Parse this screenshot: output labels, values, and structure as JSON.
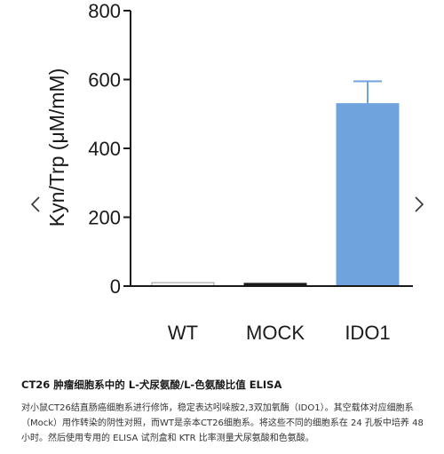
{
  "navigation": {
    "prev_icon": "chevron-left-icon",
    "next_icon": "chevron-right-icon"
  },
  "chart_data": {
    "type": "bar",
    "ylabel": "Kyn/Trp (μM/mM)",
    "categories": [
      "WT",
      "MOCK",
      "IDO1"
    ],
    "values": [
      10,
      8,
      530
    ],
    "error_plus": [
      2,
      2,
      65
    ],
    "bar_fills": [
      "#ffffff",
      "#1a1a1a",
      "#6fa3dd"
    ],
    "ylim": [
      0,
      800
    ],
    "yticks": [
      0,
      200,
      400,
      600,
      800
    ],
    "grid": false,
    "legend": "none"
  },
  "caption": {
    "title": "CT26 肿瘤细胞系中的 L-犬尿氨酸/L-色氨酸比值 ELISA",
    "body": "对小鼠CT26结直肠癌细胞系进行修饰，稳定表达吲哚胺2,3双加氧酶（IDO1）。其空载体对应细胞系（Mock）用作转染的阴性对照，而WT是亲本CT26细胞系。将这些不同的细胞系在 24 孔板中培养 48 小时。然后使用专用的 ELISA 试剂盒和 KTR 比率测量犬尿氨酸和色氨酸。"
  }
}
